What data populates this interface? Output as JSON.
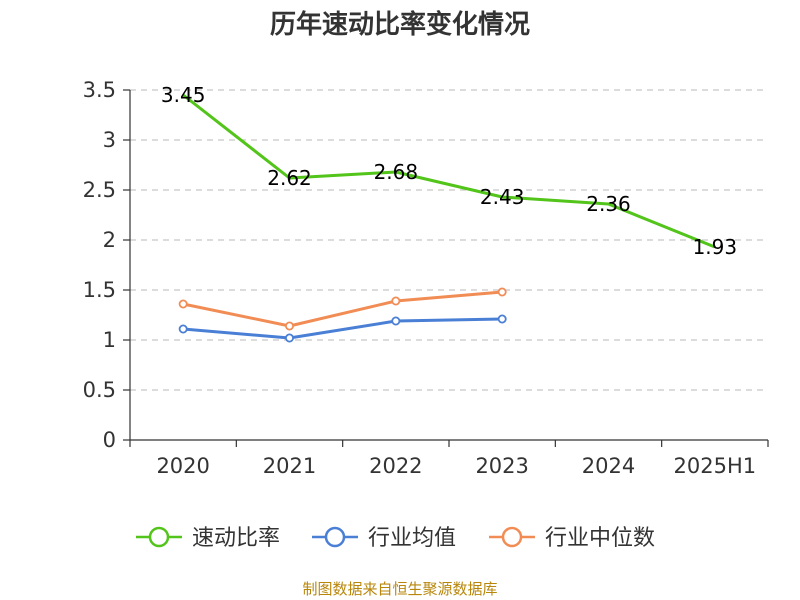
{
  "chart_data": {
    "type": "line",
    "title": "历年速动比率变化情况",
    "xlabel": "",
    "ylabel": "",
    "categories": [
      "2020",
      "2021",
      "2022",
      "2023",
      "2024",
      "2025H1"
    ],
    "y_ticks": [
      "0",
      "0.5",
      "1",
      "1.5",
      "2",
      "2.5",
      "3",
      "3.5"
    ],
    "ylim": [
      0,
      3.5
    ],
    "grid": true,
    "legend_position": "bottom",
    "series": [
      {
        "name": "速动比率",
        "color": "#52c41a",
        "values": [
          3.45,
          2.62,
          2.68,
          2.43,
          2.36,
          1.93
        ],
        "show_labels": true,
        "labels": [
          "3.45",
          "2.62",
          "2.68",
          "2.43",
          "2.36",
          "1.93"
        ]
      },
      {
        "name": "行业均值",
        "color": "#4a7fd6",
        "values": [
          1.11,
          1.02,
          1.19,
          1.21,
          null,
          null
        ],
        "show_labels": false
      },
      {
        "name": "行业中位数",
        "color": "#f28c55",
        "values": [
          1.36,
          1.14,
          1.39,
          1.48,
          null,
          null
        ],
        "show_labels": false
      }
    ]
  },
  "source": "制图数据来自恒生聚源数据库"
}
